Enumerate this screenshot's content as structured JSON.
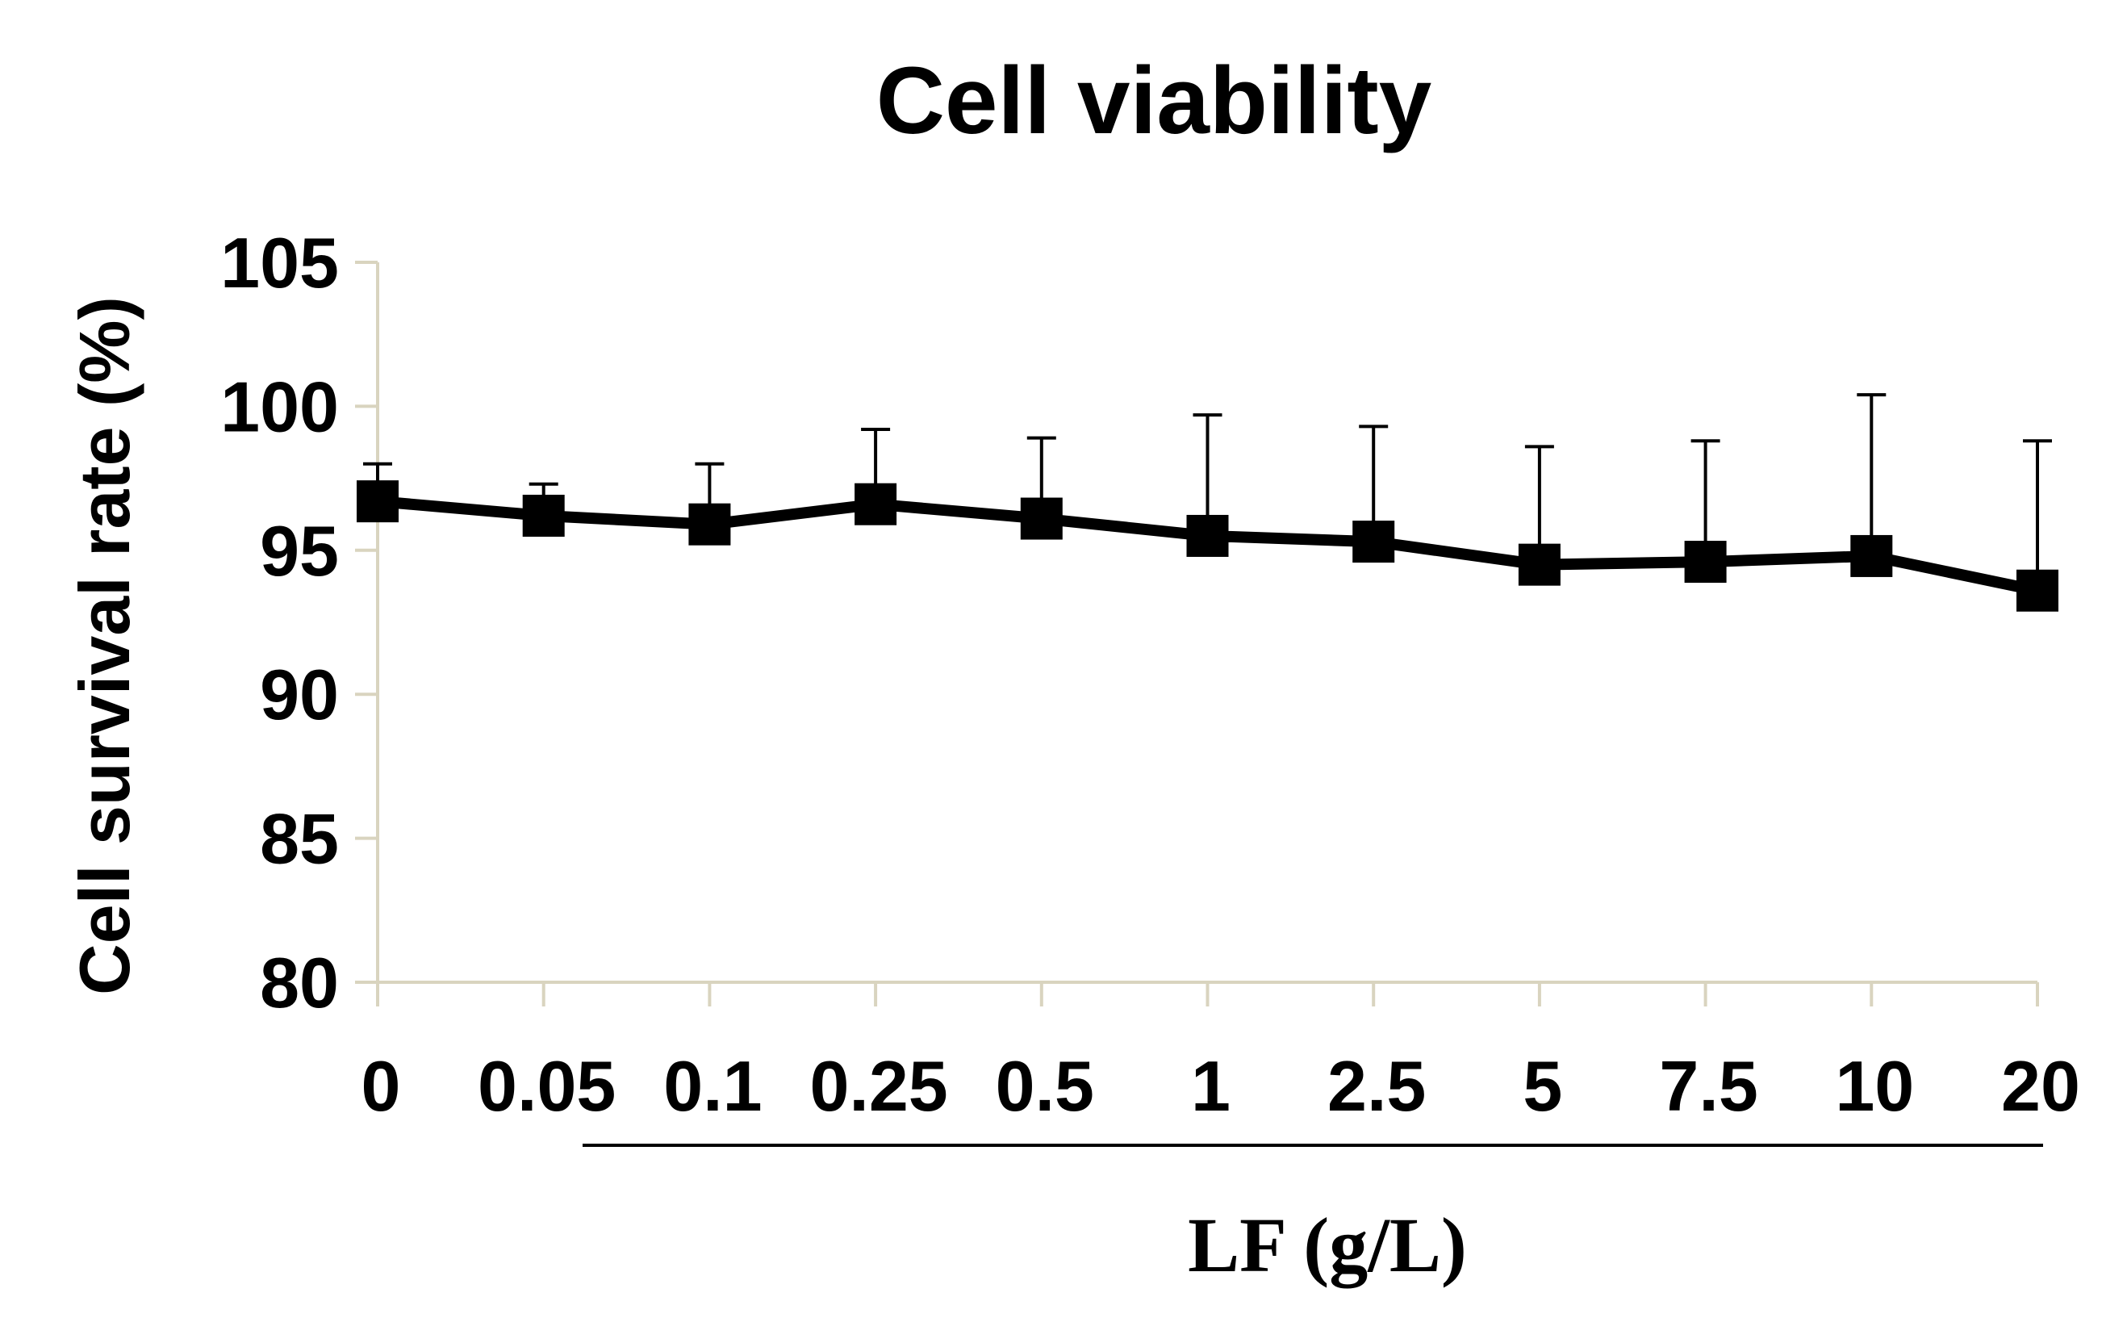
{
  "chart_data": {
    "type": "line",
    "title": "Cell viability",
    "xlabel": "LF (g/L)",
    "ylabel": "Cell survival rate (%)",
    "categories": [
      "0",
      "0.05",
      "0.1",
      "0.25",
      "0.5",
      "1",
      "2.5",
      "5",
      "7.5",
      "10",
      "20"
    ],
    "series": [
      {
        "name": "Cell survival rate",
        "values": [
          96.7,
          96.2,
          95.9,
          96.6,
          96.1,
          95.5,
          95.3,
          94.5,
          94.6,
          94.8,
          93.6
        ],
        "error_upper": [
          1.3,
          1.1,
          2.1,
          2.6,
          2.8,
          4.2,
          4.0,
          4.1,
          4.2,
          5.6,
          5.2
        ]
      }
    ],
    "ylim": [
      80,
      105
    ],
    "yticks": [
      "80",
      "85",
      "90",
      "95",
      "100",
      "105"
    ],
    "grid": false,
    "legend": "none",
    "axis_color": "#d9d4bf",
    "line_color": "#000000"
  }
}
